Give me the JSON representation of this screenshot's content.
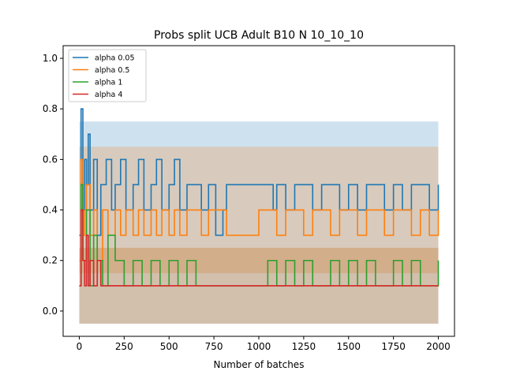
{
  "chart_data": {
    "type": "line",
    "title": "Probs split UCB Adult B10 N 10_10_10",
    "xlabel": "Number of batches",
    "ylabel": "",
    "xlim": [
      -90,
      2090
    ],
    "ylim": [
      -0.1,
      1.05
    ],
    "xticks": [
      0,
      250,
      500,
      750,
      1000,
      1250,
      1500,
      1750,
      2000
    ],
    "yticks": [
      0.0,
      0.2,
      0.4,
      0.6,
      0.8,
      1.0
    ],
    "xtick_labels": [
      "0",
      "250",
      "500",
      "750",
      "1000",
      "1250",
      "1500",
      "1750",
      "2000"
    ],
    "ytick_labels": [
      "0.0",
      "0.2",
      "0.4",
      "0.6",
      "0.8",
      "1.0"
    ],
    "grid": false,
    "legend_position": "top-left",
    "series": [
      {
        "name": "alpha 0.05",
        "color": "#1f77b4",
        "settled_value": 0.5,
        "band_upper": 0.75,
        "band_lower": 0.25,
        "x": [
          0,
          10,
          20,
          30,
          40,
          50,
          60,
          80,
          100,
          120,
          150,
          180,
          200,
          230,
          260,
          300,
          330,
          360,
          400,
          430,
          460,
          500,
          530,
          560,
          600,
          640,
          680,
          720,
          760,
          800,
          820,
          900,
          1000,
          1050,
          1080,
          1100,
          1150,
          1200,
          1250,
          1300,
          1350,
          1400,
          1450,
          1500,
          1550,
          1600,
          1650,
          1700,
          1750,
          1800,
          1850,
          1900,
          1950,
          2000
        ],
        "y": [
          0.3,
          0.8,
          0.4,
          0.6,
          0.5,
          0.7,
          0.4,
          0.6,
          0.3,
          0.5,
          0.6,
          0.4,
          0.5,
          0.6,
          0.4,
          0.5,
          0.6,
          0.4,
          0.5,
          0.6,
          0.4,
          0.5,
          0.6,
          0.4,
          0.5,
          0.5,
          0.4,
          0.5,
          0.3,
          0.4,
          0.5,
          0.5,
          0.5,
          0.5,
          0.4,
          0.5,
          0.4,
          0.5,
          0.5,
          0.4,
          0.5,
          0.5,
          0.4,
          0.5,
          0.4,
          0.5,
          0.5,
          0.4,
          0.5,
          0.4,
          0.5,
          0.5,
          0.4,
          0.5
        ]
      },
      {
        "name": "alpha 0.5",
        "color": "#ff7f0e",
        "settled_value": 0.4,
        "band_upper": 0.65,
        "band_lower": 0.15,
        "x": [
          0,
          10,
          20,
          30,
          40,
          60,
          80,
          100,
          130,
          160,
          200,
          230,
          260,
          300,
          330,
          360,
          400,
          430,
          460,
          500,
          530,
          560,
          600,
          640,
          680,
          720,
          760,
          800,
          820,
          900,
          1000,
          1050,
          1100,
          1150,
          1200,
          1250,
          1300,
          1350,
          1400,
          1450,
          1500,
          1550,
          1600,
          1650,
          1700,
          1750,
          1800,
          1850,
          1900,
          1950,
          2000
        ],
        "y": [
          0.2,
          0.6,
          0.3,
          0.4,
          0.5,
          0.3,
          0.4,
          0.2,
          0.4,
          0.3,
          0.4,
          0.3,
          0.4,
          0.3,
          0.4,
          0.3,
          0.4,
          0.3,
          0.4,
          0.3,
          0.4,
          0.3,
          0.4,
          0.4,
          0.3,
          0.4,
          0.4,
          0.4,
          0.3,
          0.3,
          0.4,
          0.4,
          0.3,
          0.4,
          0.4,
          0.3,
          0.4,
          0.4,
          0.3,
          0.4,
          0.4,
          0.3,
          0.4,
          0.4,
          0.3,
          0.4,
          0.4,
          0.3,
          0.4,
          0.3,
          0.4
        ]
      },
      {
        "name": "alpha 1",
        "color": "#2ca02c",
        "settled_value": 0.1,
        "band_upper": 0.25,
        "band_lower": -0.05,
        "x": [
          0,
          10,
          20,
          40,
          60,
          80,
          100,
          130,
          160,
          200,
          250,
          300,
          350,
          400,
          450,
          500,
          550,
          600,
          650,
          700,
          750,
          800,
          900,
          1000,
          1050,
          1100,
          1150,
          1200,
          1250,
          1300,
          1350,
          1400,
          1450,
          1500,
          1550,
          1600,
          1650,
          1700,
          1750,
          1800,
          1850,
          1900,
          1950,
          2000
        ],
        "y": [
          0.1,
          0.5,
          0.2,
          0.4,
          0.1,
          0.3,
          0.2,
          0.1,
          0.3,
          0.2,
          0.1,
          0.2,
          0.1,
          0.2,
          0.1,
          0.2,
          0.1,
          0.2,
          0.1,
          0.1,
          0.1,
          0.1,
          0.1,
          0.1,
          0.2,
          0.1,
          0.2,
          0.1,
          0.2,
          0.1,
          0.1,
          0.2,
          0.1,
          0.2,
          0.1,
          0.2,
          0.1,
          0.1,
          0.2,
          0.1,
          0.2,
          0.1,
          0.1,
          0.2
        ]
      },
      {
        "name": "alpha 4",
        "color": "#d62728",
        "settled_value": 0.1,
        "band_upper": 0.25,
        "band_lower": -0.05,
        "x": [
          0,
          10,
          20,
          30,
          40,
          50,
          60,
          80,
          100,
          120,
          140,
          160,
          200,
          300,
          500,
          1000,
          1500,
          2000
        ],
        "y": [
          0.1,
          0.4,
          0.2,
          0.1,
          0.3,
          0.1,
          0.2,
          0.1,
          0.2,
          0.1,
          0.1,
          0.1,
          0.1,
          0.1,
          0.1,
          0.1,
          0.1,
          0.1
        ]
      }
    ]
  }
}
